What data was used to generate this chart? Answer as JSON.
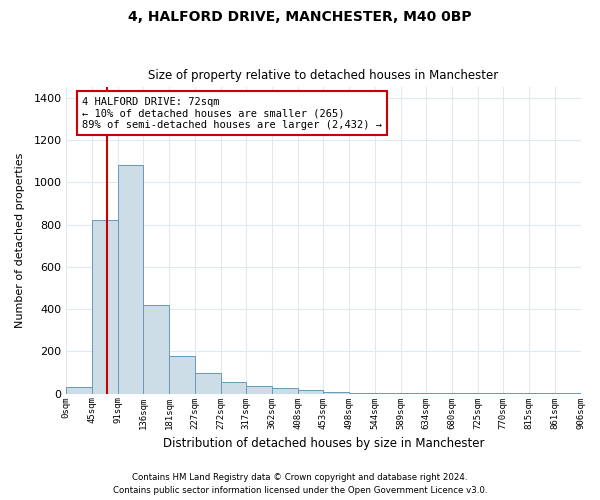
{
  "title1": "4, HALFORD DRIVE, MANCHESTER, M40 0BP",
  "title2": "Size of property relative to detached houses in Manchester",
  "xlabel": "Distribution of detached houses by size in Manchester",
  "ylabel": "Number of detached properties",
  "bar_values": [
    30,
    820,
    1080,
    420,
    180,
    100,
    55,
    35,
    25,
    15,
    8,
    5,
    5,
    5,
    4,
    3,
    3,
    2,
    2,
    5
  ],
  "bin_labels": [
    "0sqm",
    "45sqm",
    "91sqm",
    "136sqm",
    "181sqm",
    "227sqm",
    "272sqm",
    "317sqm",
    "362sqm",
    "408sqm",
    "453sqm",
    "498sqm",
    "544sqm",
    "589sqm",
    "634sqm",
    "680sqm",
    "725sqm",
    "770sqm",
    "815sqm",
    "861sqm",
    "906sqm"
  ],
  "bar_color": "#ccdde8",
  "bar_edge_color": "#6699bb",
  "vline_color": "#cc0000",
  "annotation_text": "4 HALFORD DRIVE: 72sqm\n← 10% of detached houses are smaller (265)\n89% of semi-detached houses are larger (2,432) →",
  "annotation_box_color": "#ffffff",
  "annotation_box_edge": "#cc0000",
  "ylim": [
    0,
    1450
  ],
  "yticks": [
    0,
    200,
    400,
    600,
    800,
    1000,
    1200,
    1400
  ],
  "footer1": "Contains HM Land Registry data © Crown copyright and database right 2024.",
  "footer2": "Contains public sector information licensed under the Open Government Licence v3.0.",
  "bg_color": "#ffffff",
  "plot_bg_color": "#ffffff",
  "grid_color": "#e0e8f0"
}
